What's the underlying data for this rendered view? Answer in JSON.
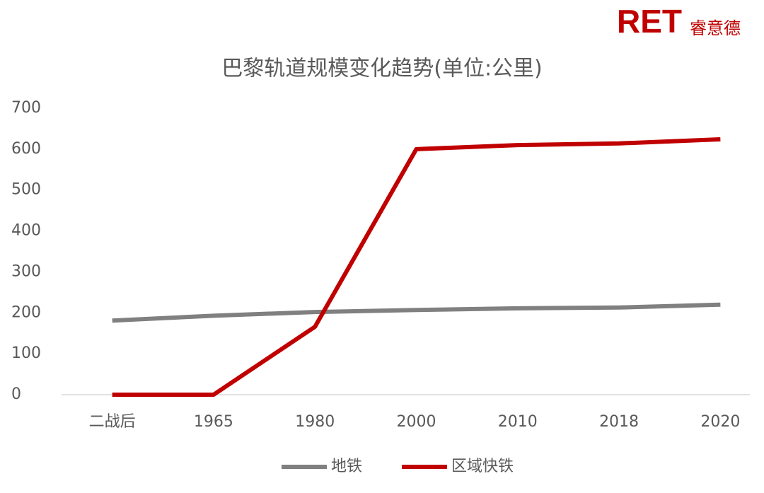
{
  "logo": {
    "brand": "RET",
    "name": "睿意德"
  },
  "chart_data": {
    "type": "line",
    "title": "巴黎轨道规模变化趋势(单位:公里)",
    "categories": [
      "二战后",
      "1965",
      "1980",
      "2000",
      "2010",
      "2018",
      "2020"
    ],
    "series": [
      {
        "name": "地铁",
        "color": "#808080",
        "values": [
          181,
          193,
          202,
          207,
          211,
          213,
          220
        ]
      },
      {
        "name": "区域快铁",
        "color": "#c00000",
        "values": [
          0,
          0,
          166,
          600,
          610,
          614,
          624
        ]
      }
    ],
    "ylim": [
      0,
      700
    ],
    "yticks": [
      0,
      100,
      200,
      300,
      400,
      500,
      600,
      700
    ],
    "grid": false,
    "legend": "bottom"
  }
}
